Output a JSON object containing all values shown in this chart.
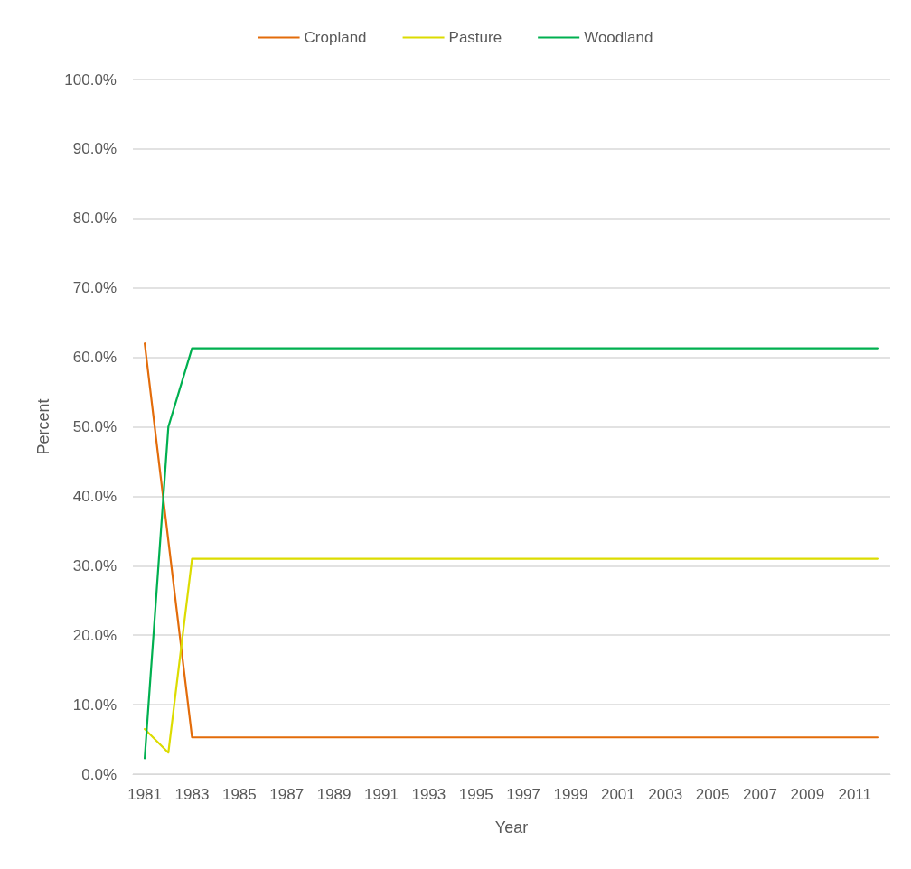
{
  "chart_data": {
    "type": "line",
    "xlabel": "Year",
    "ylabel": "Percent",
    "categories": [
      "1981",
      null,
      "1983",
      null,
      "1985",
      null,
      "1987",
      null,
      "1989",
      null,
      "1991",
      null,
      "1993",
      null,
      "1995",
      null,
      "1997",
      null,
      "1999",
      null,
      "2001",
      null,
      "2003",
      null,
      "2005",
      null,
      "2007",
      null,
      "2009",
      null,
      "2011",
      null
    ],
    "series": [
      {
        "name": "Cropland",
        "color": "#e36c0a",
        "values": [
          62.0,
          33.6,
          5.3,
          5.3,
          5.3,
          5.3,
          5.3,
          5.3,
          5.3,
          5.3,
          5.3,
          5.3,
          5.3,
          5.3,
          5.3,
          5.3,
          5.3,
          5.3,
          5.3,
          5.3,
          5.3,
          5.3,
          5.3,
          5.3,
          5.3,
          5.3,
          5.3,
          5.3,
          5.3,
          5.3,
          5.3,
          5.3
        ]
      },
      {
        "name": "Pasture",
        "color": "#dcdc00",
        "values": [
          6.5,
          3.1,
          31.0,
          31.0,
          31.0,
          31.0,
          31.0,
          31.0,
          31.0,
          31.0,
          31.0,
          31.0,
          31.0,
          31.0,
          31.0,
          31.0,
          31.0,
          31.0,
          31.0,
          31.0,
          31.0,
          31.0,
          31.0,
          31.0,
          31.0,
          31.0,
          31.0,
          31.0,
          31.0,
          31.0,
          31.0,
          31.0
        ]
      },
      {
        "name": "Woodland",
        "color": "#00b050",
        "values": [
          2.3,
          50.0,
          61.3,
          61.3,
          61.3,
          61.3,
          61.3,
          61.3,
          61.3,
          61.3,
          61.3,
          61.3,
          61.3,
          61.3,
          61.3,
          61.3,
          61.3,
          61.3,
          61.3,
          61.3,
          61.3,
          61.3,
          61.3,
          61.3,
          61.3,
          61.3,
          61.3,
          61.3,
          61.3,
          61.3,
          61.3,
          61.3
        ]
      }
    ],
    "ylim": [
      0,
      100
    ],
    "yticks": [
      {
        "value": 0,
        "label": "0.0%"
      },
      {
        "value": 10,
        "label": "10.0%"
      },
      {
        "value": 20,
        "label": "20.0%"
      },
      {
        "value": 30,
        "label": "30.0%"
      },
      {
        "value": 40,
        "label": "40.0%"
      },
      {
        "value": 50,
        "label": "50.0%"
      },
      {
        "value": 60,
        "label": "60.0%"
      },
      {
        "value": 70,
        "label": "70.0%"
      },
      {
        "value": 80,
        "label": "80.0%"
      },
      {
        "value": 90,
        "label": "90.0%"
      },
      {
        "value": 100,
        "label": "100.0%"
      }
    ],
    "grid": "y",
    "legend": "top",
    "marker": "none",
    "line_style": "solid"
  }
}
